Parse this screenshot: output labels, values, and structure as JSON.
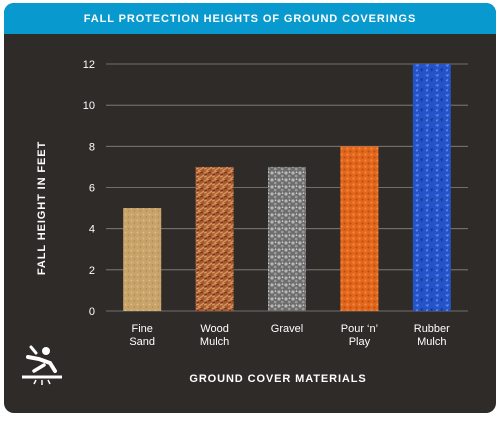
{
  "title": "FALL PROTECTION HEIGHTS OF GROUND COVERINGS",
  "icon": "person-falling-icon",
  "colors": {
    "banner": "#0899cf",
    "background": "#2f2b28",
    "text": "#ffffff",
    "grid": "#8a8580"
  },
  "chart_data": {
    "type": "bar",
    "title": "FALL PROTECTION HEIGHTS OF GROUND COVERINGS",
    "xlabel": "GROUND COVER MATERIALS",
    "ylabel": "FALL HEIGHT IN FEET",
    "ylim": [
      0,
      12
    ],
    "yticks": [
      0,
      2,
      4,
      6,
      8,
      10,
      12
    ],
    "grid": true,
    "categories": [
      [
        "Fine",
        "Sand"
      ],
      [
        "Wood",
        "Mulch"
      ],
      [
        "Gravel"
      ],
      [
        "Pour ‘n’",
        "Play"
      ],
      [
        "Rubber",
        "Mulch"
      ]
    ],
    "values": [
      5,
      7,
      7,
      8,
      12
    ],
    "bar_colors": [
      "#c9a46a",
      "#b4663a",
      "#8f8f8f",
      "#e2661c",
      "#2554c8"
    ]
  }
}
